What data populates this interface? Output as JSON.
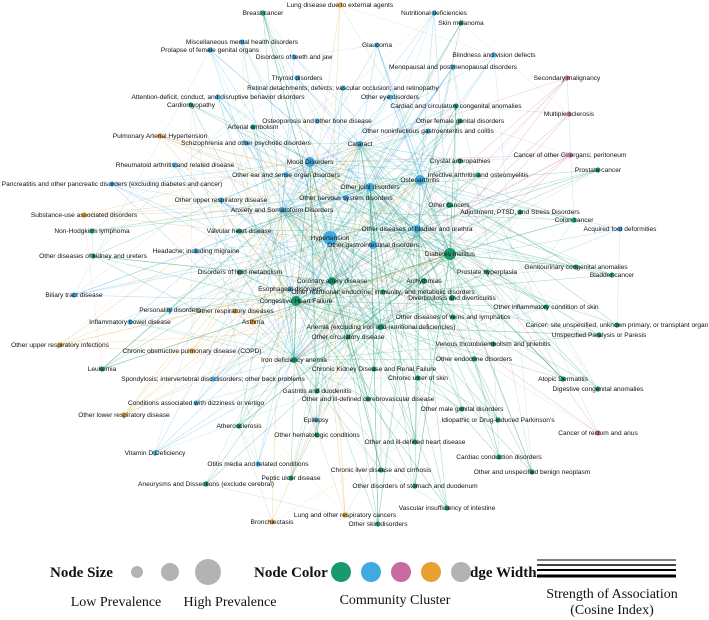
{
  "nodes": [
    {
      "label": "Lung disease due to external agents",
      "color": "#e8a030"
    },
    {
      "label": "Breast cancer",
      "color": "#1a9a6c"
    },
    {
      "label": "Nutritional deficiencies",
      "color": "#3fa9e0"
    },
    {
      "label": "Skin melanoma",
      "color": "#1a9a6c"
    },
    {
      "label": "Miscellaneous mental health disorders",
      "color": "#3fa9e0"
    },
    {
      "label": "Glaucoma",
      "color": "#3fa9e0"
    },
    {
      "label": "Prolapse of female genital organs",
      "color": "#3fa9e0"
    },
    {
      "label": "Blindness and vision defects",
      "color": "#3fa9e0"
    },
    {
      "label": "Disorders of teeth and jaw",
      "color": "#3fa9e0"
    },
    {
      "label": "Menopausal and postmenopausal disorders",
      "color": "#3fa9e0"
    },
    {
      "label": "Secondary malignancy",
      "color": "#c86b9e"
    },
    {
      "label": "Thyroid disorders",
      "color": "#3fa9e0"
    },
    {
      "label": "Retinal detachments; defects; vascular occlusion; and retinopathy",
      "color": "#3fa9e0"
    },
    {
      "label": "Attention-deficit, conduct, and disruptive behavior disorders",
      "color": "#3fa9e0"
    },
    {
      "label": "Other eye disorders",
      "color": "#3fa9e0"
    },
    {
      "label": "Cardiomyopathy",
      "color": "#1a9a6c"
    },
    {
      "label": "Multiple sclerosis",
      "color": "#c86b9e"
    },
    {
      "label": "Cardiac and circulatory congenital anomalies",
      "color": "#1a9a6c"
    },
    {
      "label": "Other female genital disorders",
      "color": "#1a9a6c"
    },
    {
      "label": "Arterial embolism",
      "color": "#1a9a6c"
    },
    {
      "label": "Osteoporosis and other bone disease",
      "color": "#3fa9e0"
    },
    {
      "label": "Pulmonary Arterial Hypertension",
      "color": "#e8a030"
    },
    {
      "label": "Other noninfectious gastroenteritis and colitis",
      "color": "#3fa9e0"
    },
    {
      "label": "Schizophrenia and other psychotic disorders",
      "color": "#3fa9e0"
    },
    {
      "label": "Cataract",
      "color": "#3fa9e0"
    },
    {
      "label": "Cancer of other GI organs; peritoneum",
      "color": "#c86b9e"
    },
    {
      "label": "Crystal arthropathies",
      "color": "#1a9a6c"
    },
    {
      "label": "Mood Disorders",
      "color": "#3fa9e0"
    },
    {
      "label": "Rheumatoid arthritis and related disease",
      "color": "#3fa9e0"
    },
    {
      "label": "Other ear and sense organ disorders",
      "color": "#3fa9e0"
    },
    {
      "label": "Prostate cancer",
      "color": "#1a9a6c"
    },
    {
      "label": "Infective arthritis and osteomyelitis",
      "color": "#1a9a6c"
    },
    {
      "label": "Osteoarthritis",
      "color": "#3fa9e0"
    },
    {
      "label": "Other joint disorders",
      "color": "#3fa9e0"
    },
    {
      "label": "Pancreatitis and other pancreatic disorders (excluding diabetes and cancer)",
      "color": "#3fa9e0"
    },
    {
      "label": "Other nervous system disorders",
      "color": "#3fa9e0"
    },
    {
      "label": "Other cancers",
      "color": "#1a9a6c"
    },
    {
      "label": "Other upper respiratory disease",
      "color": "#3fa9e0"
    },
    {
      "label": "Substance-use associated disorders",
      "color": "#e8a030"
    },
    {
      "label": "Anxiety and Somatoform Disorders",
      "color": "#3fa9e0"
    },
    {
      "label": "Adjustment, PTSD, and Stress Disorders",
      "color": "#1a9a6c"
    },
    {
      "label": "Colon cancer",
      "color": "#1a9a6c"
    },
    {
      "label": "Other diseases of bladder and urethra",
      "color": "#3fa9e0"
    },
    {
      "label": "Acquired foot deformities",
      "color": "#3fa9e0"
    },
    {
      "label": "Non-Hodgkin's lymphoma",
      "color": "#1a9a6c"
    },
    {
      "label": "Valvular heart disease",
      "color": "#1a9a6c"
    },
    {
      "label": "Hypertension",
      "color": "#3fa9e0"
    },
    {
      "label": "Other gastrointestinal disorders",
      "color": "#3fa9e0"
    },
    {
      "label": "Headache; including migraine",
      "color": "#3fa9e0"
    },
    {
      "label": "Other diseases of kidney and ureters",
      "color": "#1a9a6c"
    },
    {
      "label": "Diabetes mellitus",
      "color": "#1a9a6c"
    },
    {
      "label": "Bladder cancer",
      "color": "#1a9a6c"
    },
    {
      "label": "Prostate hyperplasia",
      "color": "#1a9a6c"
    },
    {
      "label": "Genitourinary congenital anomalies",
      "color": "#1a9a6c"
    },
    {
      "label": "Disorders of lipid metabolism",
      "color": "#1a9a6c"
    },
    {
      "label": "Arrhythmias",
      "color": "#1a9a6c"
    },
    {
      "label": "Coronary artery disease",
      "color": "#1a9a6c"
    },
    {
      "label": "Biliary tract disease",
      "color": "#3fa9e0"
    },
    {
      "label": "Esophageal disorders",
      "color": "#3fa9e0"
    },
    {
      "label": "Other nutritional; endocrine; immunity; and metabolic disorders",
      "color": "#1a9a6c"
    },
    {
      "label": "Personality disorders",
      "color": "#3fa9e0"
    },
    {
      "label": "Congestive Heart Failure",
      "color": "#1a9a6c"
    },
    {
      "label": "Diverticulosis and diverticulitis",
      "color": "#1a9a6c"
    },
    {
      "label": "Other inflammatory condition of skin",
      "color": "#1a9a6c"
    },
    {
      "label": "Other respiratory diseases",
      "color": "#e8a030"
    },
    {
      "label": "Asthma",
      "color": "#e8a030"
    },
    {
      "label": "Other diseases of veins and lymphatics",
      "color": "#1a9a6c"
    },
    {
      "label": "Inflammatory bowel disease",
      "color": "#3fa9e0"
    },
    {
      "label": "Cancer: site unspecified, unknown primary, or transplant organ",
      "color": "#1a9a6c"
    },
    {
      "label": "Anemia (excluding iron and nutritional deficiencies)",
      "color": "#1a9a6c"
    },
    {
      "label": "Unspecified Paralysis or Paresis",
      "color": "#1a9a6c"
    },
    {
      "label": "Other circulatory disease",
      "color": "#1a9a6c"
    },
    {
      "label": "Venous thromboembolism and phlebitis",
      "color": "#1a9a6c"
    },
    {
      "label": "Other upper respiratory infections",
      "color": "#e8a030"
    },
    {
      "label": "Chronic obstructive pulmonary disease (COPD)",
      "color": "#e8a030"
    },
    {
      "label": "Iron deficiency anemia",
      "color": "#1a9a6c"
    },
    {
      "label": "Other endocrine disorders",
      "color": "#1a9a6c"
    },
    {
      "label": "Leukemia",
      "color": "#1a9a6c"
    },
    {
      "label": "Chronic Kidney Disease and Renal Failure",
      "color": "#1a9a6c"
    },
    {
      "label": "Spondylosis; intervertebral disc disorders; other back problems",
      "color": "#3fa9e0"
    },
    {
      "label": "Chronic ulcer of skin",
      "color": "#1a9a6c"
    },
    {
      "label": "Atopic Dermatitis",
      "color": "#1a9a6c"
    },
    {
      "label": "Gastritis and duodenitis",
      "color": "#1a9a6c"
    },
    {
      "label": "Digestive congenital anomalies",
      "color": "#1a9a6c"
    },
    {
      "label": "Conditions associated with dizziness or vertigo",
      "color": "#3fa9e0"
    },
    {
      "label": "Other and ill-defined cerebrovascular disease",
      "color": "#1a9a6c"
    },
    {
      "label": "Other lower respiratory disease",
      "color": "#e8a030"
    },
    {
      "label": "Other male genital disorders",
      "color": "#1a9a6c"
    },
    {
      "label": "Epilepsy",
      "color": "#3fa9e0"
    },
    {
      "label": "Atherosclerosis",
      "color": "#1a9a6c"
    },
    {
      "label": "Idiopathic or Drug-induced Parkinson's",
      "color": "#1a9a6c"
    },
    {
      "label": "Other hematologic conditions",
      "color": "#1a9a6c"
    },
    {
      "label": "Cancer of rectum and anus",
      "color": "#c86b9e"
    },
    {
      "label": "Other and ill-defined heart disease",
      "color": "#1a9a6c"
    },
    {
      "label": "Vitamin D Deficiency",
      "color": "#3fa9e0"
    },
    {
      "label": "Cardiac conduction disorders",
      "color": "#1a9a6c"
    },
    {
      "label": "Otitis media and related conditions",
      "color": "#3fa9e0"
    },
    {
      "label": "Chronic liver disease and cirrhosis",
      "color": "#1a9a6c"
    },
    {
      "label": "Other and unspecified benign neoplasm",
      "color": "#1a9a6c"
    },
    {
      "label": "Peptic ulcer disease",
      "color": "#1a9a6c"
    },
    {
      "label": "Aneurysms and Dissections (exclude cerebral)",
      "color": "#1a9a6c"
    },
    {
      "label": "Other disorders of stomach and duodenum",
      "color": "#1a9a6c"
    },
    {
      "label": "Vascular insufficiency of intestine",
      "color": "#1a9a6c"
    },
    {
      "label": "Lung and other respiratory cancers",
      "color": "#e8a030"
    },
    {
      "label": "Bronchiectasis",
      "color": "#e8a030"
    },
    {
      "label": "Other skin disorders",
      "color": "#1a9a6c"
    }
  ],
  "legend": {
    "node_size_title": "Node Size",
    "low_label": "Low Prevalence",
    "high_label": "High Prevalence",
    "node_color_title": "Node Color",
    "cluster_colors": [
      "#1a9a6c",
      "#3fa9e0",
      "#c86b9e",
      "#e8a030",
      "#b3b3b3"
    ],
    "cluster_label": "Community Cluster",
    "edge_width_title": "Edge Width",
    "edge_label_line1": "Strength of Association",
    "edge_label_line2": "(Cosine Index)"
  }
}
